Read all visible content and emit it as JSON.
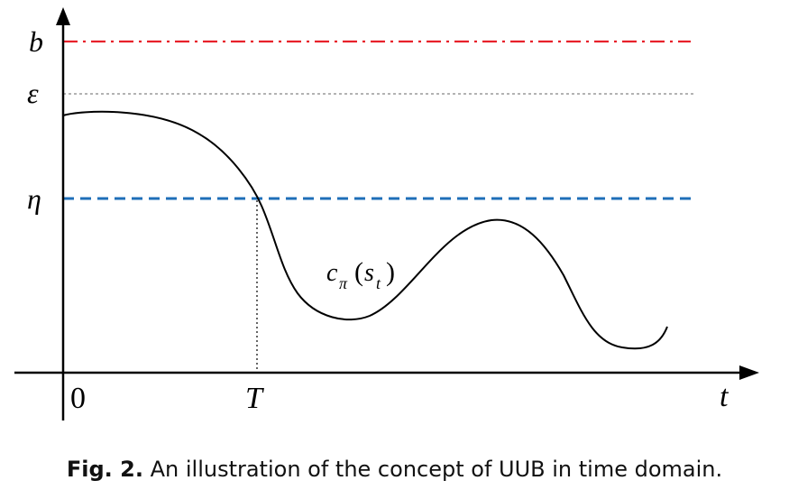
{
  "figure": {
    "labels": {
      "b": "b",
      "epsilon": "ε",
      "eta": "η",
      "origin": "0",
      "T": "T",
      "t": "t",
      "curve_c": "c",
      "curve_pi": "π",
      "curve_open": "(",
      "curve_s": "s",
      "curve_t": "t",
      "curve_close": ")"
    },
    "colors": {
      "b_line": "#e8212b",
      "epsilon_line": "#9a9a9a",
      "eta_line": "#1f6fb8",
      "axis": "#000000",
      "curve": "#000000"
    }
  },
  "caption": {
    "fig_label": "Fig. 2.",
    "text": "An illustration of the concept of UUB in time domain."
  }
}
